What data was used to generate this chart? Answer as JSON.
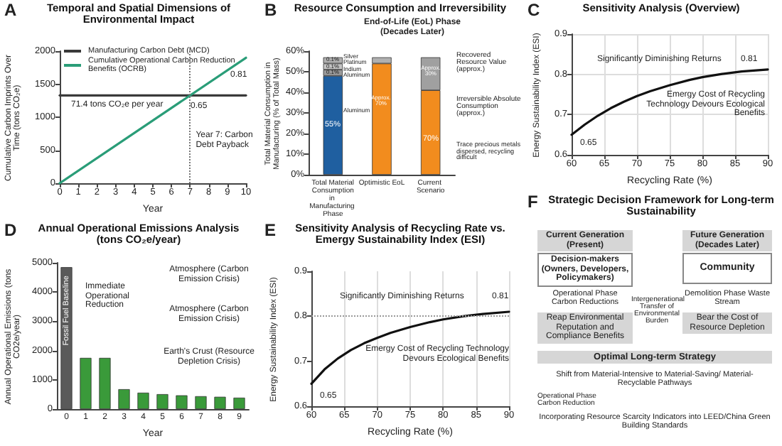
{
  "chart_data": [
    {
      "type": "line",
      "title": "Temporal and Spatial Dimensions of Environmental Impact",
      "xlabel": "Year",
      "ylabel": "Cumulative Carbon Imprints Over Time (tons CO₂e)",
      "xlim": [
        0,
        10
      ],
      "xticks": [
        0,
        1,
        2,
        3,
        4,
        5,
        6,
        7,
        8,
        9,
        10
      ],
      "ylim": [
        0,
        2000
      ],
      "yticks": [
        0,
        500,
        1000,
        1500,
        2000
      ],
      "legend": "top left",
      "series": [
        {
          "name": "Manufacturing Carbon Debt (MCD)",
          "color": "#3a3a3a",
          "x": [
            0,
            10
          ],
          "values": [
            1330,
            1330
          ]
        },
        {
          "name": "Cumulative Operational Carbon Reduction Benefits (OCRB)",
          "color": "#2a9d78",
          "x": [
            0,
            10
          ],
          "values": [
            0,
            1900
          ]
        }
      ],
      "ref_lines": [
        {
          "axis": "x",
          "value": 7,
          "label": "Year 7: Carbon Debt Payback",
          "line_style": "dotted",
          "color": "#777777"
        }
      ],
      "annotations": [
        "A",
        "71.4 tons CO₂e per year",
        "0.65",
        "0.81"
      ]
    },
    {
      "type": "bar",
      "stacked": true,
      "title": "Resource Consumption and Irreversibility",
      "subtitle": "End-of-Life (EoL) Phase (Decades Later)",
      "ylabel": "Total Material Consumption in Manufacturing (% of Total Mass)",
      "categories": [
        "Total Material Consumption in Manufacturing Phase",
        "Optimistic EoL",
        "Current Scenario"
      ],
      "ylim": [
        0,
        60
      ],
      "yticks": [
        {
          "value": 0,
          "label": "0%"
        },
        {
          "value": 10,
          "label": "10%"
        },
        {
          "value": 20,
          "label": "20%"
        },
        {
          "value": 30,
          "label": "30%"
        },
        {
          "value": 40,
          "label": "40%"
        },
        {
          "value": 50,
          "label": "50%"
        },
        {
          "value": 60,
          "label": "60%"
        }
      ],
      "series": [
        {
          "colors": [
            "#1f5fa0",
            "#f28c1e",
            "#f28c1e"
          ],
          "values": [
            48,
            54,
            41
          ]
        },
        {
          "colors": [
            "#9a9a9a",
            "#b0b0b0",
            "#a0a0a0"
          ],
          "values": [
            3,
            3,
            16
          ]
        },
        {
          "color": "#c4c4c4",
          "values": [
            3,
            null,
            null
          ]
        },
        {
          "color": "#b0b0b0",
          "values": [
            3,
            null,
            null
          ]
        }
      ],
      "annotations": [
        "B",
        "Silver",
        "Platinum",
        "Indium",
        "Aluminum",
        "Aluminum",
        "Recovered Resource Value (approx.)",
        "Irreversible Absolute Consumption (approx.)",
        "Trace precious metals dispersed, recycling difficult",
        "0.1%",
        "0.1%",
        "0.1%",
        "55%",
        "Approx. 70%",
        "70%",
        "Approx. 30%"
      ]
    },
    {
      "type": "line",
      "title": "Sensitivity Analysis (Overview)",
      "xlabel": "Recycling Rate (%)",
      "ylabel": "Energy Sustainability Index (ESI)",
      "xlim": [
        60,
        90
      ],
      "xticks": [
        60,
        65,
        70,
        75,
        80,
        85,
        90
      ],
      "ylim": [
        0.6,
        0.9
      ],
      "yticks": [
        0.6,
        0.7,
        0.8,
        0.9
      ],
      "grid": true,
      "series": [
        {
          "color": "#111111",
          "x": [
            60,
            62,
            64,
            66,
            68,
            70,
            72,
            75,
            78,
            80,
            83,
            86,
            90
          ],
          "values": [
            0.65,
            0.675,
            0.697,
            0.716,
            0.732,
            0.746,
            0.758,
            0.773,
            0.786,
            0.793,
            0.801,
            0.807,
            0.812
          ]
        }
      ],
      "annotations": [
        "C",
        "Significantly Diminishing Returns",
        "0.81",
        "Emergy Cost of Recycling Technology Devours Ecological Benefits",
        "0.65"
      ]
    },
    {
      "type": "bar",
      "title": "Annual Operational Emissions Analysis (tons CO₂e/year)",
      "xlabel": "Year",
      "ylabel": "Annual Operational Emissions (tons CO2e/year)",
      "categories": [
        "0",
        "1",
        "2",
        "3",
        "4",
        "5",
        "6",
        "7",
        "8",
        "9"
      ],
      "ylim": [
        0,
        5000
      ],
      "yticks": [
        0,
        1000,
        2000,
        3000,
        4000,
        5000
      ],
      "series": [
        {
          "colors": [
            "#5a5a5a",
            "#3a9a3a",
            "#3a9a3a",
            "#3a9a3a",
            "#3a9a3a",
            "#3a9a3a",
            "#3a9a3a",
            "#3a9a3a",
            "#3a9a3a",
            "#3a9a3a"
          ],
          "values": [
            4850,
            1750,
            1750,
            680,
            560,
            510,
            470,
            440,
            420,
            390
          ],
          "value_labels": [
            "Fossil Fuel Baseline",
            null,
            null,
            null,
            null,
            null,
            null,
            null,
            null,
            null
          ]
        }
      ],
      "annotations": [
        "D",
        "Immediate Operational Reduction",
        "Atmosphere (Carbon Emission Crisis)",
        "Atmosphere (Carbon Emission Crisis)",
        "Earth's Crust (Resource Depletion Crisis)"
      ]
    },
    {
      "type": "line",
      "title": "Sensitivity Analysis of Recycling Rate vs. Emergy Sustainability Index (ESI)",
      "xlabel": "Recycling Rate (%)",
      "ylabel": "Energy Sustainability Index (ESI)",
      "xlim": [
        60,
        90
      ],
      "xticks": [
        60,
        65,
        70,
        75,
        80,
        85,
        90
      ],
      "ylim": [
        0.6,
        0.9
      ],
      "yticks": [
        0.6,
        0.7,
        0.8,
        0.9
      ],
      "grid": "x",
      "series": [
        {
          "color": "#111111",
          "x": [
            60,
            62,
            64,
            66,
            68,
            70,
            72,
            75,
            78,
            80,
            83,
            86,
            90
          ],
          "values": [
            0.65,
            0.682,
            0.706,
            0.725,
            0.74,
            0.752,
            0.763,
            0.776,
            0.787,
            0.793,
            0.8,
            0.805,
            0.81
          ]
        }
      ],
      "ref_lines": [
        {
          "axis": "y",
          "value": 0.8,
          "line_style": "dotted",
          "color": "#999999"
        }
      ],
      "annotations": [
        "E",
        "Significantly Diminishing Returns",
        "0.81",
        "Emergy Cost of Recycling Technology Devours Ecological Benefits",
        "0.65"
      ]
    },
    {
      "type": "other",
      "title": "Strategic Decision Framework for Long-term Sustainability",
      "annotations": [
        "F",
        "Current Generation (Present)",
        "Future Generation (Decades Later)",
        "Decision-makers (Owners, Developers, Policymakers)",
        "Community",
        "Operational Phase Carbon Reductions",
        "Intergenerational Transfer of Environmental Burden",
        "Demolition Phase Waste Stream",
        "Reap Environmental Reputation and Compliance Benefits",
        "Bear the Cost of Resource Depletion",
        "Optimal Long-term Strategy",
        "Shift from Material-Intensive to Material-Saving/ Material-Recyclable Pathways",
        "Operational Phase Carbon Reduction",
        "Incorporating Resource Scarcity Indicators into LEED/China Green Building Standards"
      ]
    }
  ]
}
